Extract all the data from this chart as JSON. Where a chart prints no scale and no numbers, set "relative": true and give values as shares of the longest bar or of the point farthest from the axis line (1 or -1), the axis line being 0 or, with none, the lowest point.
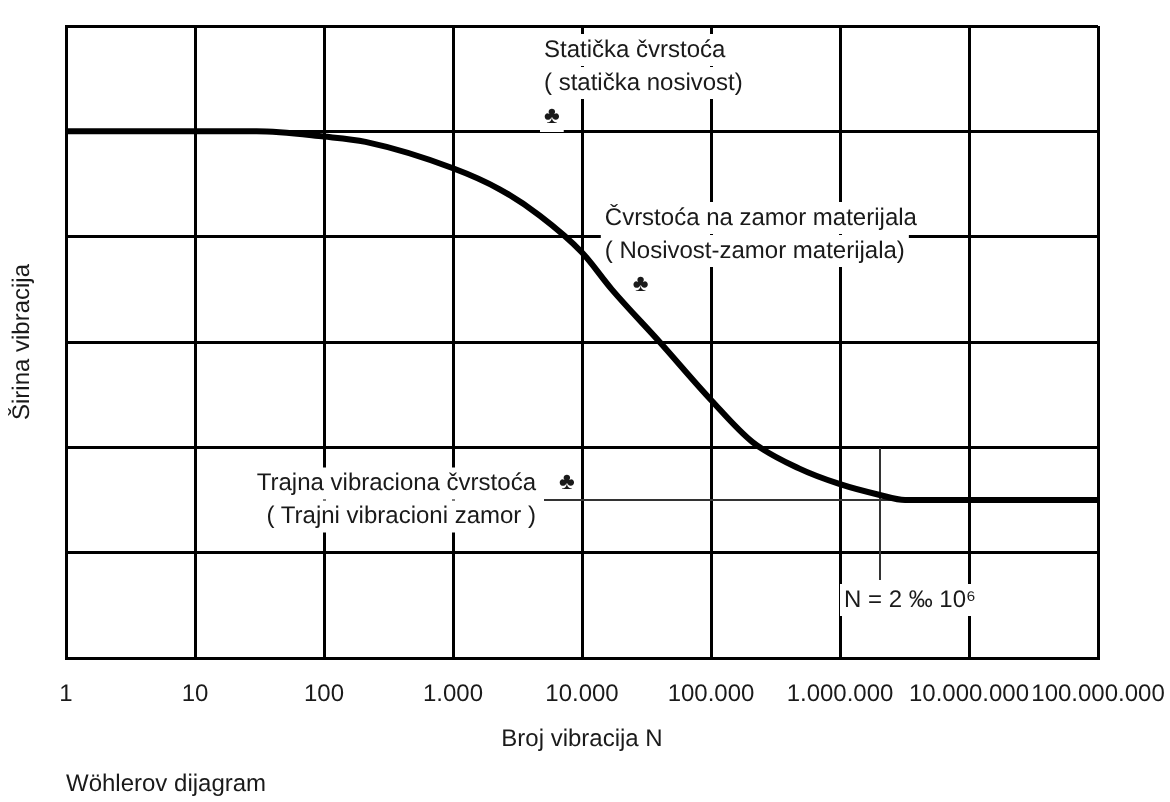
{
  "chart_data": {
    "type": "line",
    "xlabel": "Broj vibracija N",
    "ylabel": "Širina vibracija",
    "x": [
      1,
      10,
      30,
      100,
      210,
      1000,
      2300,
      4700,
      10000,
      17000,
      40000,
      100000,
      210000,
      480000,
      1000000,
      2000000,
      3200000,
      10000000,
      100000000
    ],
    "values": [
      1,
      1,
      1,
      0.99,
      0.98,
      0.93,
      0.89,
      0.84,
      0.77,
      0.7,
      0.6,
      0.49,
      0.41,
      0.36,
      0.33,
      0.31,
      0.3,
      0.3,
      0.3
    ],
    "color": "#000000",
    "relative": true,
    "log": "x",
    "xlim": [
      1,
      100000000
    ],
    "xticks": [
      1,
      10,
      100,
      {
        "value": 1000,
        "label": "1.000"
      },
      {
        "value": 10000,
        "label": "10.000"
      },
      {
        "value": 100000,
        "label": "100.000"
      },
      {
        "value": 1000000,
        "label": "1.000.000"
      },
      {
        "value": 10000000,
        "label": "10.000.000"
      },
      {
        "value": 100000000,
        "label": "100.000.000"
      }
    ],
    "tick_labels": "x",
    "grid": true,
    "ref_lines": [
      {
        "axis": "y",
        "value": 0.3,
        "label": "Trajna vibraciona čvrstoća\n( Trajni vibracioni zamor )",
        "color": "#333333"
      }
    ],
    "annotations": [
      "Statička čvrstoća\n( statička nosivost)\n♣",
      "Čvrstoća na zamor materijala\n( Nosivost-zamor materijala)\n♣",
      "♣",
      "N = 2 ‰ 10⁶",
      "Wöhlerov dijagram"
    ]
  }
}
